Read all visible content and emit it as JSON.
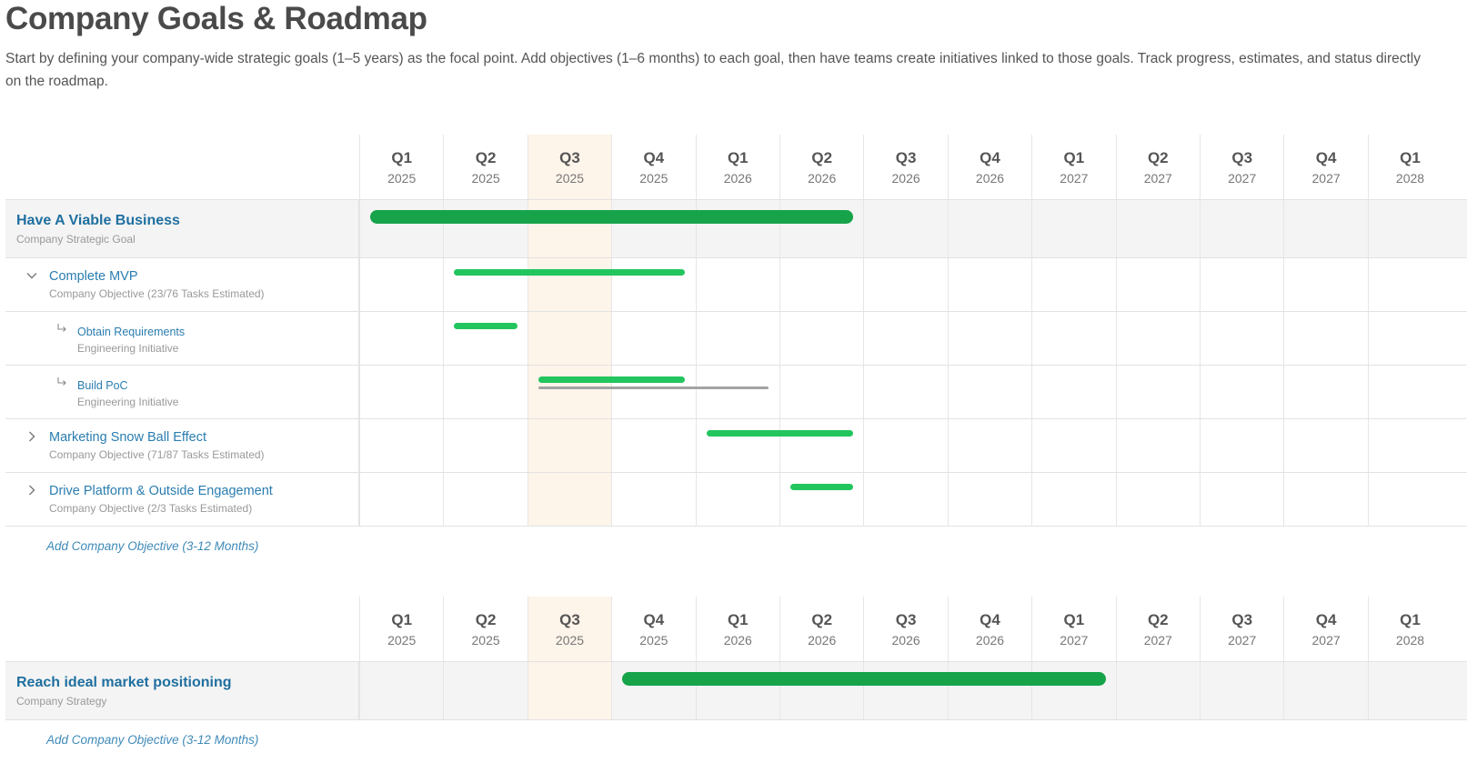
{
  "page": {
    "title": "Company Goals & Roadmap",
    "description": "Start by defining your company-wide strategic goals (1–5 years) as the focal point. Add objectives (1–6 months) to each goal, then have teams create initiatives linked to those goals. Track progress, estimates, and status directly on the roadmap."
  },
  "timeline": {
    "current_quarter_index": 2,
    "quarters": [
      {
        "q": "Q1",
        "year": "2025"
      },
      {
        "q": "Q2",
        "year": "2025"
      },
      {
        "q": "Q3",
        "year": "2025"
      },
      {
        "q": "Q4",
        "year": "2025"
      },
      {
        "q": "Q1",
        "year": "2026"
      },
      {
        "q": "Q2",
        "year": "2026"
      },
      {
        "q": "Q3",
        "year": "2026"
      },
      {
        "q": "Q4",
        "year": "2026"
      },
      {
        "q": "Q1",
        "year": "2027"
      },
      {
        "q": "Q2",
        "year": "2027"
      },
      {
        "q": "Q3",
        "year": "2027"
      },
      {
        "q": "Q4",
        "year": "2027"
      },
      {
        "q": "Q1",
        "year": "2028"
      }
    ]
  },
  "colors": {
    "goal_bar": "#16a34a",
    "objective_bar": "#22c55e",
    "estimate_bar": "#a3a3a3",
    "current_quarter_bg": "#fdf4ea",
    "link": "#2a7db0"
  },
  "goals": [
    {
      "title": "Have A Viable Business",
      "subtitle": "Company Strategic Goal",
      "span_quarters": [
        0.13,
        5.88
      ],
      "add_objective_label": "Add Company Objective (3-12 Months)",
      "rows": [
        {
          "kind": "objective",
          "expanded": true,
          "icon": "chevron-down-icon",
          "title": "Complete MVP",
          "subtitle": "Company Objective (23/76 Tasks Estimated)",
          "span_quarters": [
            1.13,
            3.87
          ]
        },
        {
          "kind": "initiative",
          "icon": "subitem-arrow-icon",
          "title": "Obtain Requirements",
          "subtitle": "Engineering Initiative",
          "span_quarters": [
            1.13,
            1.88
          ]
        },
        {
          "kind": "initiative",
          "icon": "subitem-arrow-icon",
          "title": "Build PoC",
          "subtitle": "Engineering Initiative",
          "span_quarters": [
            2.13,
            3.87
          ],
          "estimate_span_quarters": [
            2.13,
            4.87
          ]
        },
        {
          "kind": "objective",
          "expanded": false,
          "icon": "chevron-right-icon",
          "title": "Marketing Snow Ball Effect",
          "subtitle": "Company Objective (71/87 Tasks Estimated)",
          "span_quarters": [
            4.13,
            5.88
          ]
        },
        {
          "kind": "objective",
          "expanded": false,
          "icon": "chevron-right-icon",
          "title": "Drive Platform & Outside Engagement",
          "subtitle": "Company Objective (2/3 Tasks Estimated)",
          "span_quarters": [
            5.13,
            5.88
          ]
        }
      ]
    },
    {
      "title": "Reach ideal market positioning",
      "subtitle": "Company Strategy",
      "span_quarters": [
        3.13,
        8.88
      ],
      "add_objective_label": "Add Company Objective (3-12 Months)",
      "rows": []
    }
  ]
}
